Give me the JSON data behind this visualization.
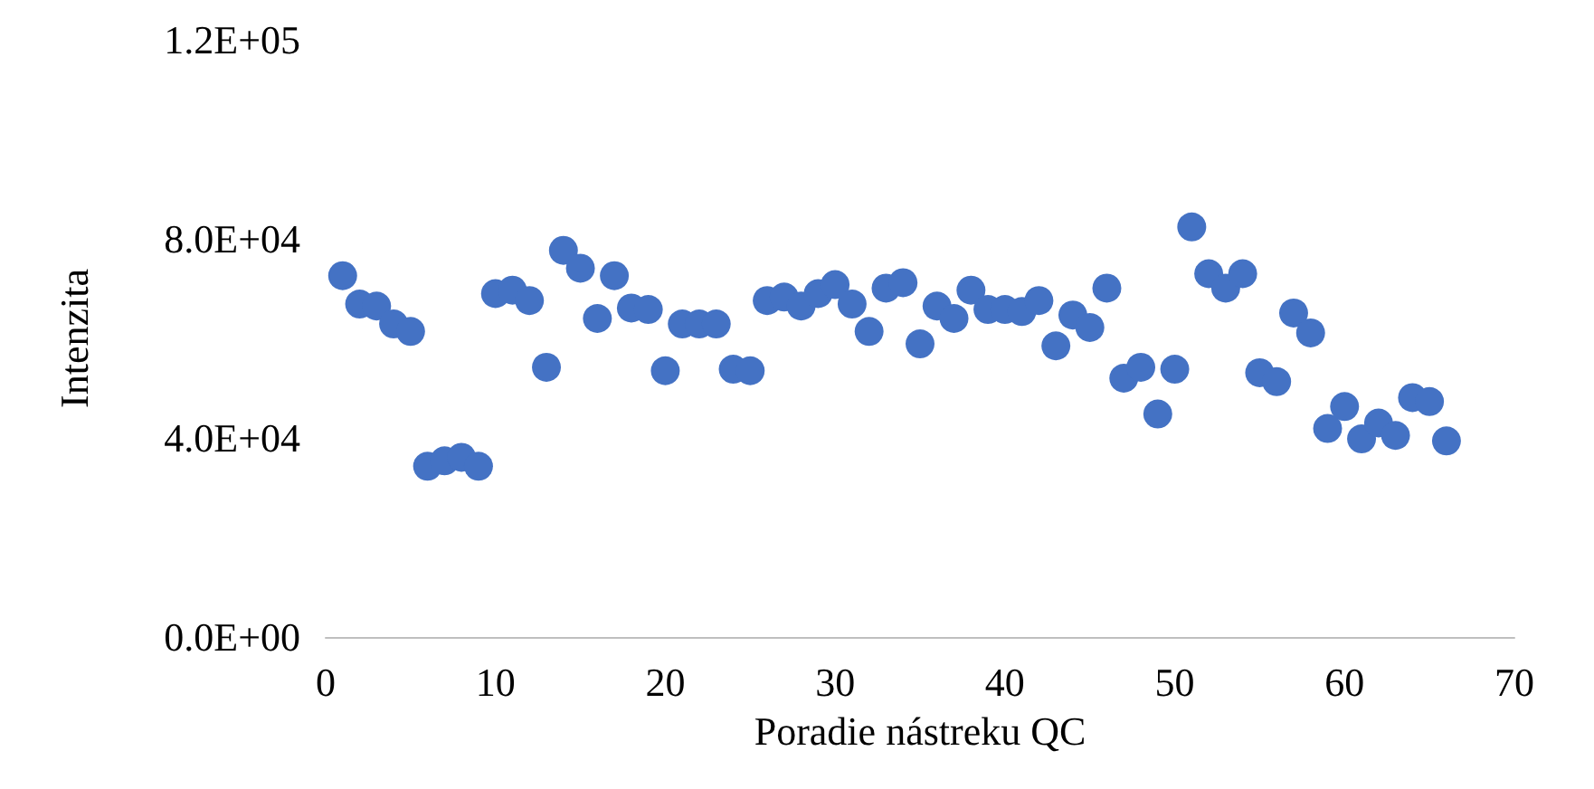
{
  "chart_data": {
    "type": "scatter",
    "xlabel": "Poradie nástreku QC",
    "ylabel": "Intenzita",
    "x": [
      1,
      2,
      3,
      4,
      5,
      6,
      7,
      8,
      9,
      10,
      11,
      12,
      13,
      14,
      15,
      16,
      17,
      18,
      19,
      20,
      21,
      22,
      23,
      24,
      25,
      26,
      27,
      28,
      29,
      30,
      31,
      32,
      33,
      34,
      35,
      36,
      37,
      38,
      39,
      40,
      41,
      42,
      43,
      44,
      45,
      46,
      47,
      48,
      49,
      50,
      51,
      52,
      53,
      54,
      55,
      56,
      57,
      58,
      59,
      60,
      61,
      62,
      63,
      64,
      65,
      66
    ],
    "series": [
      {
        "color": "#4472c4",
        "values": [
          72600,
          66900,
          66500,
          62900,
          61400,
          34300,
          35400,
          36100,
          34300,
          69000,
          69700,
          67600,
          54200,
          77700,
          74100,
          64000,
          72600,
          66100,
          65800,
          53500,
          62900,
          62900,
          62900,
          53800,
          53500,
          67600,
          68300,
          66500,
          69000,
          70800,
          66900,
          61400,
          70100,
          71200,
          58900,
          66500,
          64000,
          69700,
          65800,
          65800,
          65400,
          67600,
          58500,
          64700,
          62200,
          70100,
          52000,
          54200,
          44800,
          53800,
          82400,
          73000,
          70100,
          73000,
          53100,
          51300,
          65100,
          61100,
          41900,
          46300,
          39800,
          43000,
          40500,
          48100,
          47300,
          39400
        ]
      }
    ],
    "xlim": [
      0,
      70
    ],
    "xticks": [
      0,
      10,
      20,
      30,
      40,
      50,
      60,
      70
    ],
    "ylim": [
      0,
      120000
    ],
    "yticks": [
      {
        "value": 0,
        "label": "0.0E+00"
      },
      {
        "value": 40000,
        "label": "4.0E+04"
      },
      {
        "value": 80000,
        "label": "8.0E+04"
      },
      {
        "value": 120000,
        "label": "1.2E+05"
      }
    ],
    "grid": false,
    "marker": "circle"
  }
}
